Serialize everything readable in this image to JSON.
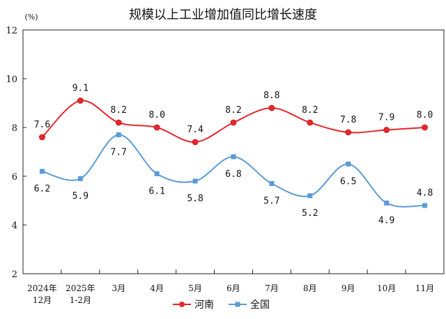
{
  "chart_data": {
    "type": "line",
    "title": "规模以上工业增加值同比增长速度",
    "ylabel": "(%)",
    "ylim": [
      2,
      12
    ],
    "yticks": [
      2,
      4,
      6,
      8,
      10,
      12
    ],
    "grid": false,
    "legend_position": "bottom-center",
    "categories": [
      [
        "2024年",
        "12月"
      ],
      [
        "2025年",
        "1-2月"
      ],
      [
        "3月"
      ],
      [
        "4月"
      ],
      [
        "5月"
      ],
      [
        "6月"
      ],
      [
        "7月"
      ],
      [
        "8月"
      ],
      [
        "9月"
      ],
      [
        "10月"
      ],
      [
        "11月"
      ]
    ],
    "series": [
      {
        "name": "河南",
        "color": "#e8262b",
        "marker": "circle",
        "values": [
          7.6,
          9.1,
          8.2,
          8.0,
          7.4,
          8.2,
          8.8,
          8.2,
          7.8,
          7.9,
          8.0
        ]
      },
      {
        "name": "全国",
        "color": "#5b9bd5",
        "marker": "square",
        "values": [
          6.2,
          5.9,
          7.7,
          6.1,
          5.8,
          6.8,
          5.7,
          5.2,
          6.5,
          4.9,
          4.8
        ]
      }
    ]
  }
}
